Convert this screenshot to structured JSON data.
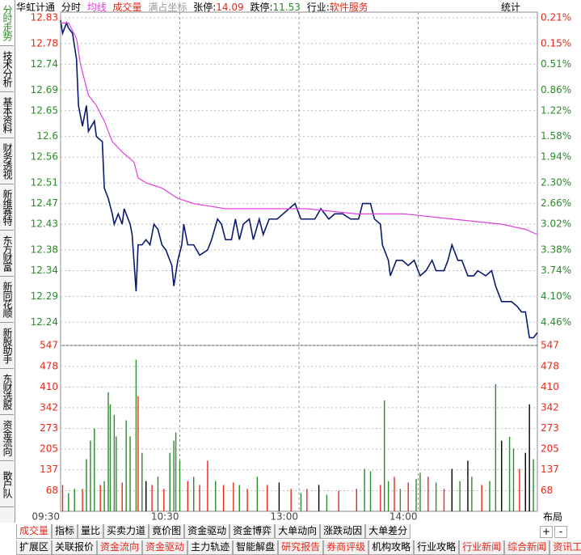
{
  "header": {
    "stock": "华虹计通",
    "coord_label": "满占坐标",
    "limit_up_label": "张停:",
    "limit_up": "14.09",
    "limit_down_label": "跌停:",
    "limit_down": "11.53",
    "industry_label": "行业:",
    "industry": "软件服务",
    "stats": "统计"
  },
  "left_tabs": [
    "分时走势",
    "技术分析",
    "基本资料",
    "财务透视",
    "新维赛特",
    "东方财富",
    "新同花顺",
    "新股助手",
    "东财选股",
    "资金流向",
    "散户队"
  ],
  "chart_data": [
    {
      "type": "line",
      "xlim": [
        0,
        240
      ],
      "ylim": [
        12.195,
        12.83
      ],
      "yticks": [
        12.83,
        12.78,
        12.74,
        12.69,
        12.65,
        12.6,
        12.56,
        12.51,
        12.47,
        12.43,
        12.38,
        12.34,
        12.29,
        12.24
      ],
      "ytick_colors": [
        "#e8281a",
        "#e8281a",
        "#2c8a2c",
        "#2c8a2c",
        "#2c8a2c",
        "#2c8a2c",
        "#2c8a2c",
        "#2c8a2c",
        "#2c8a2c",
        "#2c8a2c",
        "#2c8a2c",
        "#2c8a2c",
        "#2c8a2c",
        "#2c8a2c"
      ],
      "y2labels": [
        "0.21%",
        "0.15%",
        "0.51%",
        "0.86%",
        "1.22%",
        "1.58%",
        "1.94%",
        "2.30%",
        "2.66%",
        "3.02%",
        "3.38%",
        "3.74%",
        "4.10%",
        "4.46%"
      ],
      "y2_label_colors": [
        "#e8281a",
        "#e8281a",
        "#2c8a2c",
        "#2c8a2c",
        "#2c8a2c",
        "#2c8a2c",
        "#2c8a2c",
        "#2c8a2c",
        "#2c8a2c",
        "#2c8a2c",
        "#2c8a2c",
        "#2c8a2c",
        "#2c8a2c",
        "#2c8a2c"
      ],
      "grid": true,
      "series": [
        {
          "name": "分时",
          "color": "#0a1a6e",
          "x": [
            0,
            1,
            3,
            4,
            6,
            8,
            9,
            11,
            13,
            14,
            17,
            18,
            21,
            22,
            24,
            26,
            27,
            29,
            31,
            32,
            35,
            36,
            38,
            39,
            41,
            43,
            45,
            47,
            49,
            51,
            53,
            56,
            57,
            59,
            61,
            62,
            64,
            67,
            70,
            74,
            76,
            79,
            81,
            83,
            86,
            88,
            90,
            92,
            95,
            97,
            100,
            102,
            105,
            109,
            112,
            115,
            118,
            121,
            124,
            128,
            131,
            135,
            138,
            142,
            146,
            150,
            152,
            156,
            158,
            161,
            162,
            165,
            166,
            169,
            172,
            175,
            178,
            181,
            184,
            187,
            189,
            193,
            195,
            197,
            200,
            202,
            205,
            208,
            210,
            214,
            217,
            219,
            222,
            225,
            227,
            230,
            232,
            234,
            236,
            238,
            240
          ],
          "values": [
            12.825,
            12.8,
            12.82,
            12.81,
            12.8,
            12.75,
            12.66,
            12.62,
            12.66,
            12.61,
            12.63,
            12.6,
            12.59,
            12.5,
            12.48,
            12.45,
            12.43,
            12.45,
            12.43,
            12.46,
            12.43,
            12.41,
            12.3,
            12.39,
            12.39,
            12.4,
            12.39,
            12.43,
            12.42,
            12.39,
            12.38,
            12.35,
            12.31,
            12.36,
            12.39,
            12.43,
            12.39,
            12.39,
            12.37,
            12.38,
            12.4,
            12.44,
            12.43,
            12.4,
            12.4,
            12.44,
            12.4,
            12.43,
            12.44,
            12.4,
            12.44,
            12.41,
            12.44,
            12.44,
            12.45,
            12.46,
            12.47,
            12.44,
            12.44,
            12.44,
            12.46,
            12.44,
            12.45,
            12.45,
            12.44,
            12.44,
            12.47,
            12.47,
            12.44,
            12.43,
            12.39,
            12.36,
            12.33,
            12.36,
            12.36,
            12.35,
            12.36,
            12.33,
            12.34,
            12.36,
            12.34,
            12.34,
            12.36,
            12.39,
            12.36,
            12.36,
            12.33,
            12.33,
            12.34,
            12.33,
            12.34,
            12.31,
            12.28,
            12.28,
            12.28,
            12.27,
            12.26,
            12.26,
            12.21,
            12.21,
            12.22
          ]
        },
        {
          "name": "均线",
          "color": "#e040e0",
          "x": [
            0,
            4,
            8,
            10,
            14,
            18,
            22,
            26,
            31,
            37,
            39,
            43,
            51,
            59,
            67,
            83,
            100,
            124,
            149,
            173,
            197,
            222,
            234,
            240
          ],
          "values": [
            12.82,
            12.82,
            12.79,
            12.74,
            12.68,
            12.66,
            12.63,
            12.59,
            12.57,
            12.55,
            12.52,
            12.51,
            12.5,
            12.48,
            12.47,
            12.46,
            12.46,
            12.46,
            12.45,
            12.45,
            12.44,
            12.43,
            12.42,
            12.41
          ]
        }
      ]
    },
    {
      "type": "bar",
      "xlim": [
        0,
        240
      ],
      "ylim": [
        0,
        547
      ],
      "xticks": [
        {
          "value": 0,
          "label": "09:30"
        },
        {
          "value": 60,
          "label": "10:30"
        },
        {
          "value": 120,
          "label": "13:00"
        },
        {
          "value": 180,
          "label": "14:00"
        }
      ],
      "yticks": [
        68,
        137,
        205,
        273,
        342,
        410,
        478,
        547
      ],
      "tick_color": "#e8281a",
      "series": [
        {
          "name": "成交量",
          "x": [
            1,
            4,
            7,
            11,
            13,
            15,
            17,
            20,
            22,
            24,
            25,
            27,
            28,
            31,
            33,
            35,
            38,
            39,
            41,
            43,
            46,
            49,
            52,
            55,
            57,
            58,
            60,
            64,
            67,
            70,
            74,
            78,
            82,
            87,
            90,
            94,
            99,
            104,
            110,
            116,
            121,
            124,
            130,
            134,
            140,
            149,
            153,
            156,
            161,
            163,
            165,
            168,
            171,
            175,
            179,
            181,
            185,
            189,
            193,
            197,
            201,
            205,
            207,
            212,
            216,
            219,
            222,
            226,
            228,
            231,
            234,
            236,
            238
          ],
          "values": [
            87,
            60,
            74,
            74,
            172,
            233,
            273,
            87,
            100,
            393,
            353,
            318,
            247,
            95,
            300,
            247,
            500,
            380,
            193,
            100,
            87,
            114,
            74,
            193,
            233,
            260,
            167,
            100,
            114,
            87,
            167,
            100,
            87,
            95,
            87,
            74,
            114,
            87,
            95,
            74,
            60,
            74,
            87,
            55,
            68,
            74,
            140,
            132,
            87,
            366,
            100,
            114,
            74,
            95,
            106,
            127,
            114,
            95,
            74,
            140,
            100,
            167,
            114,
            87,
            100,
            420,
            233,
            246,
            207,
            140,
            193,
            353,
            172
          ],
          "colors": [
            "#e8281a",
            "#2c8a2c",
            "#2c8a2c",
            "#e8281a",
            "#2c8a2c",
            "#2c8a2c",
            "#2c8a2c",
            "#e8281a",
            "#2c8a2c",
            "#2c8a2c",
            "#2c8a2c",
            "#2c8a2c",
            "#2c8a2c",
            "#e8281a",
            "#2c8a2c",
            "#2c8a2c",
            "#2c8a2c",
            "#e8281a",
            "#2c8a2c",
            "#000000",
            "#e8281a",
            "#2c8a2c",
            "#e8281a",
            "#2c8a2c",
            "#2c8a2c",
            "#2c8a2c",
            "#2c8a2c",
            "#e8281a",
            "#2c8a2c",
            "#e8281a",
            "#e8281a",
            "#2c8a2c",
            "#e8281a",
            "#e8281a",
            "#2c8a2c",
            "#e8281a",
            "#2c8a2c",
            "#e8281a",
            "#000000",
            "#e8281a",
            "#2c8a2c",
            "#e8281a",
            "#000000",
            "#2c8a2c",
            "#e8281a",
            "#e8281a",
            "#2c8a2c",
            "#2c8a2c",
            "#e8281a",
            "#2c8a2c",
            "#2c8a2c",
            "#e8281a",
            "#2c8a2c",
            "#e8281a",
            "#2c8a2c",
            "#2c8a2c",
            "#e8281a",
            "#2c8a2c",
            "#e8281a",
            "#000000",
            "#2c8a2c",
            "#000000",
            "#2c8a2c",
            "#e8281a",
            "#2c8a2c",
            "#2c8a2c",
            "#000000",
            "#2c8a2c",
            "#2c8a2c",
            "#e8281a",
            "#000000",
            "#000000",
            "#2c8a2c"
          ]
        }
      ]
    }
  ],
  "bottom_tabs": [
    "成交量",
    "指标",
    "量比",
    "买卖力道",
    "竟价图",
    "资金驱动",
    "资金博弈",
    "大单动向",
    "涨跌动因",
    "大单差分"
  ],
  "bottom_tabs_2": [
    "扩展区",
    "关联报价",
    "资金流向",
    "资金驱动",
    "主力轨迹",
    "智能解盘",
    "研究报告",
    "券商评级",
    "机构攻略",
    "行业攻略",
    "行业新闻",
    "综合新闻",
    "资讯工场"
  ],
  "layout_button": "布局",
  "plus": "+",
  "minus": "-"
}
